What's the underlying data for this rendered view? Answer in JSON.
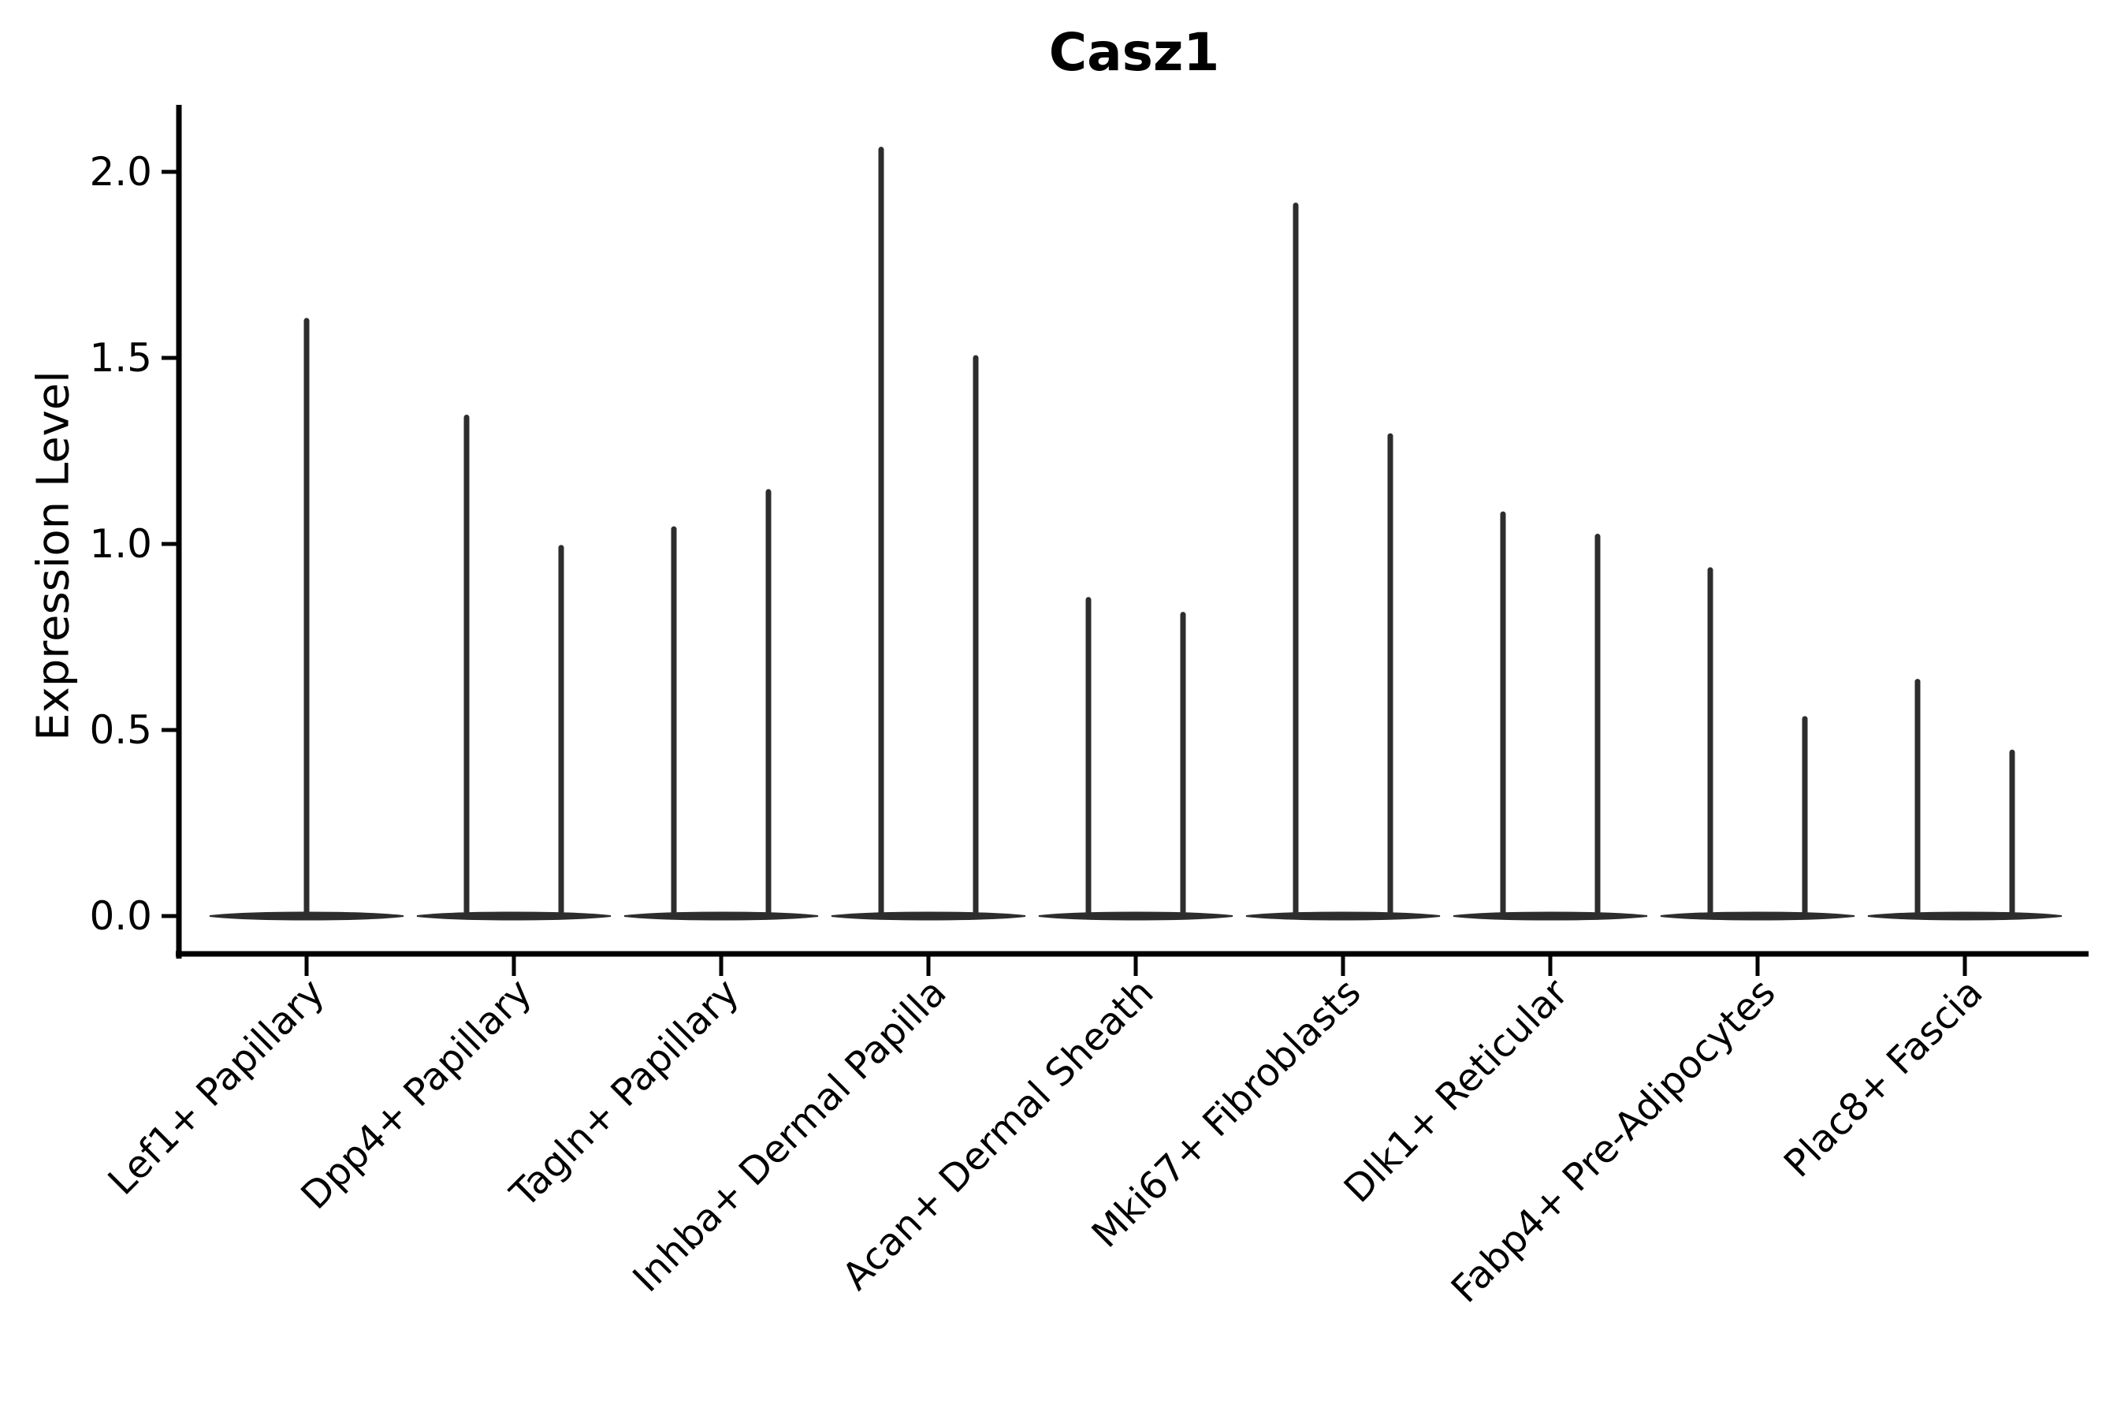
{
  "chart_data": {
    "type": "violin",
    "title": "Casz1",
    "xlabel": "",
    "ylabel": "Expression Level",
    "categories": [
      "Lef1+ Papillary",
      "Dpp4+ Papillary",
      "Tagln+ Papillary",
      "Inhba+ Dermal Papilla",
      "Acan+ Dermal Sheath",
      "Mki67+ Fibroblasts",
      "Dlk1+ Reticular",
      "Fabp4+ Pre-Adipocytes",
      "Plac8+ Fascia"
    ],
    "violin_maxima": [
      [
        1.6
      ],
      [
        1.34,
        0.99
      ],
      [
        1.04,
        1.14
      ],
      [
        2.06,
        1.5
      ],
      [
        0.85,
        0.81
      ],
      [
        1.91,
        1.29
      ],
      [
        1.08,
        1.02
      ],
      [
        0.93,
        0.53
      ],
      [
        0.63,
        0.44
      ]
    ],
    "ytick_labels": [
      "0.0",
      "0.5",
      "1.0",
      "1.5",
      "2.0"
    ],
    "ytick_values": [
      0.0,
      0.5,
      1.0,
      1.5,
      2.0
    ],
    "ylim": [
      0,
      2.18
    ],
    "grid": "off",
    "legend": "none",
    "violin_color": "#2d2d2d",
    "axis_color": "#000000"
  }
}
